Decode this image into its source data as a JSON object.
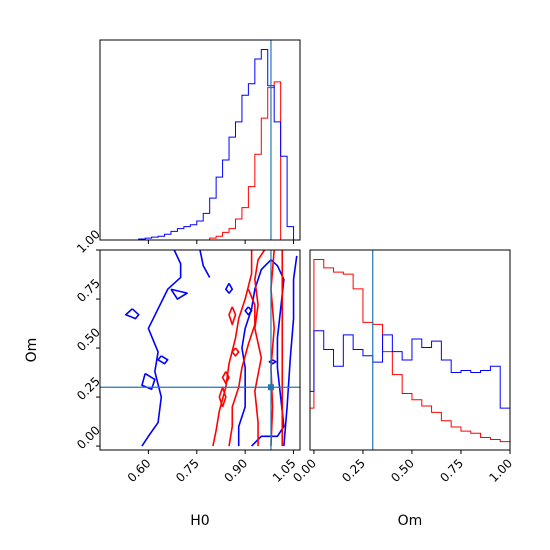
{
  "chart_data": {
    "type": "corner",
    "colors": {
      "series_a": "#ff0000",
      "series_b": "#0000ff",
      "truth": "#1f77b4"
    },
    "parameters": [
      "H0",
      "Om"
    ],
    "truth": {
      "H0": 0.98,
      "Om": 0.3
    },
    "ranges": {
      "H0": [
        0.45,
        1.07
      ],
      "Om": [
        -0.02,
        1.0
      ]
    },
    "axis_labels": {
      "xlabel_H0": "H0",
      "xlabel_Om": "Om",
      "ylabel_Om": "Om"
    },
    "ticks": {
      "H0": {
        "values": [
          0.6,
          0.75,
          0.9,
          1.05
        ],
        "labels": [
          "0.60",
          "0.75",
          "0.90",
          "1.05"
        ]
      },
      "Om": {
        "values": [
          0.0,
          0.25,
          0.5,
          0.75,
          1.0
        ],
        "labels": [
          "0.00",
          "0.25",
          "0.50",
          "0.75",
          "1.00"
        ]
      }
    },
    "hist_H0": {
      "edges": [
        0.45,
        0.47,
        0.49,
        0.51,
        0.53,
        0.55,
        0.57,
        0.59,
        0.61,
        0.63,
        0.65,
        0.67,
        0.69,
        0.71,
        0.73,
        0.75,
        0.77,
        0.79,
        0.81,
        0.83,
        0.85,
        0.87,
        0.89,
        0.91,
        0.93,
        0.95,
        0.97,
        0.99,
        1.01,
        1.03,
        1.05,
        1.07
      ],
      "series": [
        {
          "key": "series_a",
          "values": [
            0,
            0,
            0,
            0,
            0,
            0,
            0,
            0,
            0,
            0,
            0,
            0,
            0,
            0,
            0,
            0,
            0,
            0.01,
            0.02,
            0.04,
            0.06,
            0.11,
            0.17,
            0.28,
            0.45,
            0.64,
            0.8,
            0.83,
            0,
            0,
            0
          ]
        },
        {
          "key": "series_b",
          "values": [
            0,
            0,
            0,
            0,
            0,
            0,
            0.005,
            0.01,
            0.015,
            0.02,
            0.03,
            0.045,
            0.06,
            0.07,
            0.08,
            0.1,
            0.14,
            0.22,
            0.33,
            0.42,
            0.54,
            0.62,
            0.76,
            0.82,
            0.95,
            1.0,
            0.81,
            0.62,
            0.44,
            0.07,
            0
          ]
        }
      ]
    },
    "hist_Om": {
      "edges": [
        -0.02,
        0.0,
        0.05,
        0.1,
        0.15,
        0.2,
        0.25,
        0.3,
        0.35,
        0.4,
        0.45,
        0.5,
        0.55,
        0.6,
        0.65,
        0.7,
        0.75,
        0.8,
        0.85,
        0.9,
        0.95,
        1.0
      ],
      "series": [
        {
          "key": "series_a",
          "values": [
            0.2,
            0.91,
            0.87,
            0.85,
            0.84,
            0.77,
            0.61,
            0.6,
            0.47,
            0.36,
            0.27,
            0.24,
            0.21,
            0.18,
            0.14,
            0.11,
            0.09,
            0.08,
            0.06,
            0.05,
            0.04
          ]
        },
        {
          "key": "series_b",
          "values": [
            0.28,
            0.57,
            0.48,
            0.4,
            0.55,
            0.48,
            0.45,
            0.42,
            0.55,
            0.47,
            0.43,
            0.53,
            0.49,
            0.52,
            0.43,
            0.37,
            0.38,
            0.37,
            0.38,
            0.4,
            0.2
          ]
        }
      ]
    },
    "contours": [
      {
        "key": "series_b",
        "points": [
          [
            0.58,
            0.0
          ],
          [
            0.6,
            0.05
          ],
          [
            0.63,
            0.12
          ],
          [
            0.64,
            0.25
          ],
          [
            0.62,
            0.38
          ],
          [
            0.63,
            0.48
          ],
          [
            0.6,
            0.6
          ],
          [
            0.63,
            0.7
          ],
          [
            0.66,
            0.8
          ],
          [
            0.7,
            0.86
          ],
          [
            0.7,
            0.93
          ],
          [
            0.68,
            1.0
          ]
        ]
      },
      {
        "key": "series_b",
        "points": [
          [
            0.76,
            1.0
          ],
          [
            0.77,
            0.92
          ],
          [
            0.79,
            0.86
          ]
        ]
      },
      {
        "key": "series_b",
        "points": [
          [
            0.67,
            0.8
          ],
          [
            0.69,
            0.75
          ],
          [
            0.72,
            0.78
          ],
          [
            0.67,
            0.8
          ]
        ]
      },
      {
        "key": "series_b",
        "points": [
          [
            0.55,
            0.7
          ],
          [
            0.57,
            0.67
          ],
          [
            0.56,
            0.65
          ],
          [
            0.53,
            0.67
          ],
          [
            0.55,
            0.7
          ]
        ]
      },
      {
        "key": "series_b",
        "points": [
          [
            0.59,
            0.37
          ],
          [
            0.62,
            0.34
          ],
          [
            0.61,
            0.29
          ],
          [
            0.58,
            0.31
          ],
          [
            0.59,
            0.37
          ]
        ]
      },
      {
        "key": "series_b",
        "points": [
          [
            0.64,
            0.46
          ],
          [
            0.66,
            0.44
          ],
          [
            0.65,
            0.42
          ],
          [
            0.63,
            0.44
          ],
          [
            0.64,
            0.46
          ]
        ]
      },
      {
        "key": "series_b",
        "points": [
          [
            0.88,
            0.0
          ],
          [
            0.88,
            0.1
          ],
          [
            0.9,
            0.2
          ],
          [
            0.9,
            0.3
          ],
          [
            0.9,
            0.4
          ],
          [
            0.89,
            0.5
          ],
          [
            0.9,
            0.6
          ],
          [
            0.92,
            0.7
          ],
          [
            0.93,
            0.8
          ],
          [
            0.95,
            0.9
          ],
          [
            0.98,
            0.95
          ],
          [
            1.0,
            0.92
          ],
          [
            1.02,
            0.85
          ],
          [
            1.01,
            0.7
          ],
          [
            1.0,
            0.55
          ],
          [
            1.0,
            0.4
          ],
          [
            1.01,
            0.25
          ],
          [
            1.02,
            0.1
          ],
          [
            1.0,
            0.05
          ],
          [
            0.95,
            0.05
          ],
          [
            0.92,
            0.0
          ]
        ]
      },
      {
        "key": "series_b",
        "points": [
          [
            1.02,
            0.0
          ],
          [
            1.03,
            0.2
          ],
          [
            1.04,
            0.45
          ],
          [
            1.05,
            0.65
          ],
          [
            1.05,
            0.85
          ],
          [
            1.06,
            0.97
          ]
        ]
      },
      {
        "key": "series_b",
        "points": [
          [
            0.985,
            0.44
          ],
          [
            0.995,
            0.43
          ],
          [
            0.985,
            0.42
          ],
          [
            0.975,
            0.43
          ],
          [
            0.985,
            0.44
          ]
        ]
      },
      {
        "key": "series_b",
        "points": [
          [
            0.91,
            0.71
          ],
          [
            0.92,
            0.69
          ],
          [
            0.91,
            0.67
          ],
          [
            0.9,
            0.69
          ],
          [
            0.91,
            0.71
          ]
        ]
      },
      {
        "key": "series_b",
        "points": [
          [
            0.85,
            0.83
          ],
          [
            0.86,
            0.8
          ],
          [
            0.85,
            0.78
          ],
          [
            0.84,
            0.8
          ],
          [
            0.85,
            0.83
          ]
        ]
      },
      {
        "key": "series_a",
        "points": [
          [
            0.94,
            0.0
          ],
          [
            0.94,
            0.12
          ],
          [
            0.93,
            0.28
          ],
          [
            0.95,
            0.45
          ],
          [
            0.93,
            0.6
          ],
          [
            0.94,
            0.72
          ],
          [
            0.93,
            0.85
          ],
          [
            0.94,
            0.95
          ],
          [
            0.96,
            1.0
          ]
        ]
      },
      {
        "key": "series_a",
        "points": [
          [
            0.98,
            0.0
          ],
          [
            0.985,
            0.2
          ],
          [
            0.98,
            0.4
          ],
          [
            0.99,
            0.6
          ],
          [
            0.98,
            0.8
          ],
          [
            0.99,
            1.0
          ]
        ]
      },
      {
        "key": "series_a",
        "points": [
          [
            1.015,
            0.0
          ],
          [
            1.015,
            1.0
          ]
        ]
      },
      {
        "key": "series_a",
        "points": [
          [
            0.8,
            0.0
          ],
          [
            0.81,
            0.08
          ],
          [
            0.82,
            0.18
          ],
          [
            0.84,
            0.3
          ],
          [
            0.85,
            0.42
          ],
          [
            0.87,
            0.55
          ],
          [
            0.88,
            0.65
          ],
          [
            0.9,
            0.75
          ],
          [
            0.92,
            0.88
          ],
          [
            0.92,
            1.0
          ]
        ]
      },
      {
        "key": "series_a",
        "points": [
          [
            0.85,
            0.0
          ],
          [
            0.86,
            0.1
          ],
          [
            0.86,
            0.2
          ],
          [
            0.88,
            0.3
          ],
          [
            0.89,
            0.4
          ],
          [
            0.91,
            0.52
          ],
          [
            0.93,
            0.62
          ],
          [
            0.93,
            0.72
          ],
          [
            0.91,
            0.8
          ]
        ]
      },
      {
        "key": "series_a",
        "points": [
          [
            0.83,
            0.2
          ],
          [
            0.84,
            0.25
          ],
          [
            0.83,
            0.3
          ],
          [
            0.82,
            0.25
          ],
          [
            0.83,
            0.2
          ]
        ]
      },
      {
        "key": "series_a",
        "points": [
          [
            0.86,
            0.71
          ],
          [
            0.87,
            0.67
          ],
          [
            0.86,
            0.62
          ],
          [
            0.85,
            0.67
          ],
          [
            0.86,
            0.71
          ]
        ]
      },
      {
        "key": "series_a",
        "points": [
          [
            0.87,
            0.5
          ],
          [
            0.88,
            0.48
          ],
          [
            0.87,
            0.46
          ],
          [
            0.86,
            0.48
          ],
          [
            0.87,
            0.5
          ]
        ]
      },
      {
        "key": "series_a",
        "points": [
          [
            0.84,
            0.38
          ],
          [
            0.85,
            0.35
          ],
          [
            0.84,
            0.32
          ],
          [
            0.83,
            0.35
          ],
          [
            0.84,
            0.38
          ]
        ]
      }
    ]
  }
}
